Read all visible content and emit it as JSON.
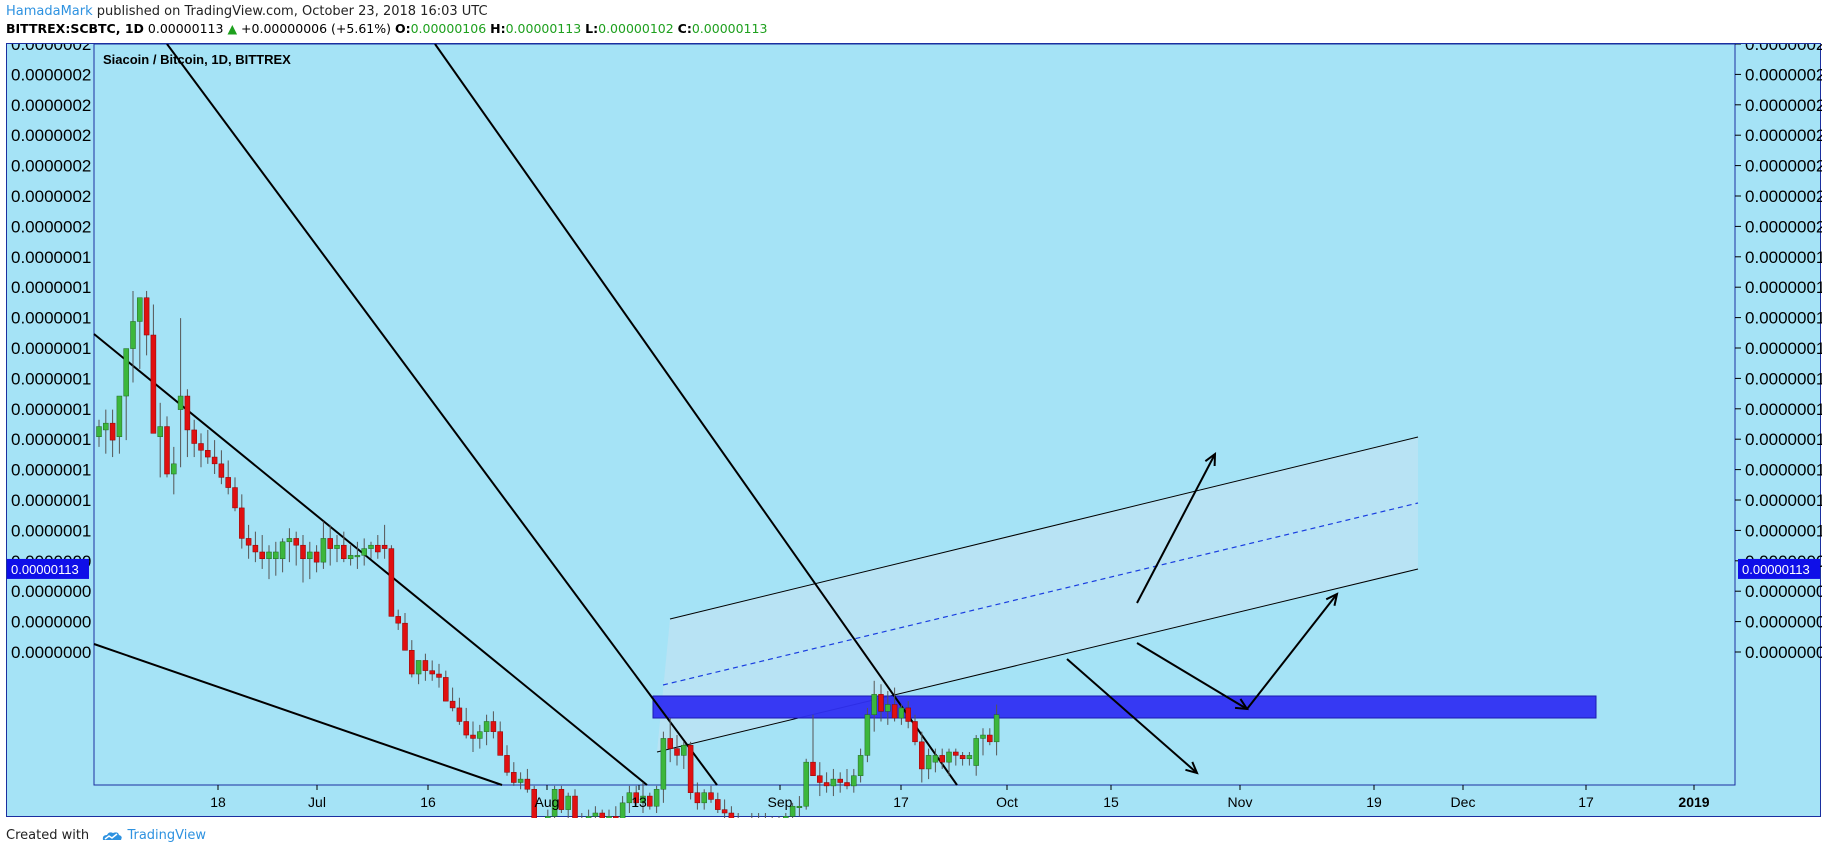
{
  "header": {
    "author": "HamadaMark",
    "published_text": " published on TradingView.com, October 23, 2018 16:03 UTC",
    "symbol_line": "BITTREX:SCBTC, 1D",
    "last": "0.00000113",
    "change": "+0.00000006 (+5.61%)",
    "open_label": "O:",
    "open": "0.00000106",
    "high_label": "H:",
    "high": "0.00000113",
    "low_label": "L:",
    "low": "0.00000102",
    "close_label": "C:",
    "close": "0.00000113",
    "up_arrow": "▲"
  },
  "footer": {
    "created_with": "Created with",
    "brand": "TradingView",
    "logo_icon": "tradingview-cloud-icon"
  },
  "colors": {
    "background": "#a5e3f6",
    "up": "#3cb73c",
    "down": "#e01010",
    "price_tag": "#0f0fe8",
    "support_zone": "#2f2ff2",
    "channel_fill": "#c0e3f4",
    "midline": "#1a3fe0"
  },
  "chart_data": {
    "type": "candlestick",
    "title": "Siacoin / Bitcoin, 1D, BITTREX",
    "x_ticks": [
      "18",
      "Jul",
      "16",
      "Aug",
      "13",
      "Sep",
      "17",
      "Oct",
      "15",
      "Nov",
      "19",
      "Dec",
      "17",
      "2019"
    ],
    "y_ticks": [
      "0.0000002",
      "0.0000002",
      "0.0000002",
      "0.0000002",
      "0.0000002",
      "0.0000002",
      "0.0000002",
      "0.0000001",
      "0.0000001",
      "0.0000001",
      "0.0000001",
      "0.0000001",
      "0.0000001",
      "0.0000001",
      "0.0000001",
      "0.0000001",
      "0.0000001",
      "0.0000000",
      "0.0000000",
      "0.0000000",
      "0.0000000"
    ],
    "current_price_label": "0.00000113",
    "y_scale": {
      "value_a": 2.0,
      "value_b": 1.0,
      "unit": "1e-6 BTC"
    },
    "candles_1e6": [
      [
        1.52,
        1.57,
        1.49,
        1.55
      ],
      [
        1.54,
        1.6,
        1.47,
        1.56
      ],
      [
        1.56,
        1.6,
        1.46,
        1.51
      ],
      [
        1.52,
        1.62,
        1.47,
        1.64
      ],
      [
        1.64,
        1.78,
        1.51,
        1.78
      ],
      [
        1.78,
        1.95,
        1.68,
        1.86
      ],
      [
        1.86,
        1.92,
        1.72,
        1.93
      ],
      [
        1.93,
        1.95,
        1.76,
        1.82
      ],
      [
        1.82,
        1.91,
        1.53,
        1.53
      ],
      [
        1.52,
        1.62,
        1.4,
        1.55
      ],
      [
        1.55,
        1.58,
        1.4,
        1.41
      ],
      [
        1.41,
        1.49,
        1.35,
        1.44
      ],
      [
        1.6,
        1.87,
        1.43,
        1.64
      ],
      [
        1.64,
        1.66,
        1.46,
        1.54
      ],
      [
        1.54,
        1.57,
        1.46,
        1.5
      ],
      [
        1.5,
        1.53,
        1.43,
        1.48
      ],
      [
        1.48,
        1.54,
        1.44,
        1.46
      ],
      [
        1.46,
        1.51,
        1.41,
        1.44
      ],
      [
        1.44,
        1.48,
        1.38,
        1.4
      ],
      [
        1.4,
        1.45,
        1.35,
        1.37
      ],
      [
        1.37,
        1.4,
        1.3,
        1.31
      ],
      [
        1.31,
        1.35,
        1.19,
        1.22
      ],
      [
        1.22,
        1.26,
        1.16,
        1.2
      ],
      [
        1.2,
        1.24,
        1.15,
        1.18
      ],
      [
        1.18,
        1.23,
        1.13,
        1.16
      ],
      [
        1.16,
        1.2,
        1.1,
        1.18
      ],
      [
        1.16,
        1.21,
        1.11,
        1.18
      ],
      [
        1.16,
        1.22,
        1.12,
        1.21
      ],
      [
        1.21,
        1.25,
        1.15,
        1.22
      ],
      [
        1.22,
        1.24,
        1.14,
        1.2
      ],
      [
        1.2,
        1.23,
        1.09,
        1.16
      ],
      [
        1.16,
        1.21,
        1.1,
        1.18
      ],
      [
        1.18,
        1.2,
        1.12,
        1.15
      ],
      [
        1.15,
        1.27,
        1.13,
        1.22
      ],
      [
        1.22,
        1.26,
        1.14,
        1.19
      ],
      [
        1.19,
        1.23,
        1.15,
        1.2
      ],
      [
        1.2,
        1.24,
        1.15,
        1.16
      ],
      [
        1.16,
        1.2,
        1.14,
        1.17
      ],
      [
        1.17,
        1.21,
        1.13,
        1.17
      ],
      [
        1.17,
        1.22,
        1.14,
        1.19
      ],
      [
        1.19,
        1.21,
        1.16,
        1.2
      ],
      [
        1.2,
        1.23,
        1.16,
        1.18
      ],
      [
        1.2,
        1.26,
        1.16,
        1.19
      ],
      [
        1.19,
        1.2,
        0.99,
        0.99
      ],
      [
        0.99,
        1.01,
        0.95,
        0.97
      ],
      [
        0.97,
        1.0,
        0.89,
        0.89
      ],
      [
        0.89,
        0.92,
        0.81,
        0.82
      ],
      [
        0.82,
        0.86,
        0.79,
        0.86
      ],
      [
        0.86,
        0.88,
        0.8,
        0.83
      ],
      [
        0.83,
        0.86,
        0.8,
        0.82
      ],
      [
        0.82,
        0.85,
        0.78,
        0.81
      ],
      [
        0.81,
        0.83,
        0.74,
        0.74
      ],
      [
        0.74,
        0.78,
        0.71,
        0.72
      ],
      [
        0.72,
        0.75,
        0.67,
        0.68
      ],
      [
        0.68,
        0.72,
        0.63,
        0.64
      ],
      [
        0.64,
        0.68,
        0.59,
        0.63
      ],
      [
        0.63,
        0.67,
        0.6,
        0.65
      ],
      [
        0.65,
        0.7,
        0.61,
        0.68
      ],
      [
        0.68,
        0.71,
        0.63,
        0.65
      ],
      [
        0.65,
        0.68,
        0.58,
        0.58
      ],
      [
        0.58,
        0.61,
        0.52,
        0.53
      ],
      [
        0.53,
        0.56,
        0.49,
        0.5
      ],
      [
        0.5,
        0.53,
        0.48,
        0.51
      ],
      [
        0.51,
        0.54,
        0.47,
        0.48
      ],
      [
        0.48,
        0.49,
        0.33,
        0.34
      ],
      [
        0.34,
        0.36,
        0.29,
        0.31
      ],
      [
        0.32,
        0.42,
        0.31,
        0.4
      ],
      [
        0.4,
        0.49,
        0.37,
        0.48
      ],
      [
        0.48,
        0.49,
        0.41,
        0.42
      ],
      [
        0.42,
        0.47,
        0.39,
        0.46
      ],
      [
        0.46,
        0.48,
        0.36,
        0.38
      ],
      [
        0.38,
        0.41,
        0.35,
        0.39
      ],
      [
        0.39,
        0.42,
        0.36,
        0.4
      ],
      [
        0.4,
        0.43,
        0.37,
        0.41
      ],
      [
        0.41,
        0.42,
        0.38,
        0.39
      ],
      [
        0.38,
        0.42,
        0.37,
        0.4
      ],
      [
        0.4,
        0.43,
        0.37,
        0.38
      ],
      [
        0.38,
        0.46,
        0.37,
        0.44
      ],
      [
        0.44,
        0.49,
        0.41,
        0.47
      ],
      [
        0.47,
        0.49,
        0.43,
        0.44
      ],
      [
        0.44,
        0.5,
        0.41,
        0.46
      ],
      [
        0.46,
        0.47,
        0.42,
        0.43
      ],
      [
        0.43,
        0.49,
        0.41,
        0.48
      ],
      [
        0.48,
        0.65,
        0.44,
        0.63
      ],
      [
        0.63,
        0.69,
        0.56,
        0.6
      ],
      [
        0.6,
        0.64,
        0.55,
        0.58
      ],
      [
        0.58,
        0.62,
        0.54,
        0.61
      ],
      [
        0.61,
        0.62,
        0.45,
        0.47
      ],
      [
        0.47,
        0.5,
        0.42,
        0.44
      ],
      [
        0.44,
        0.48,
        0.42,
        0.47
      ],
      [
        0.47,
        0.49,
        0.44,
        0.45
      ],
      [
        0.45,
        0.47,
        0.41,
        0.42
      ],
      [
        0.42,
        0.45,
        0.39,
        0.41
      ],
      [
        0.41,
        0.43,
        0.37,
        0.38
      ],
      [
        0.38,
        0.41,
        0.34,
        0.35
      ],
      [
        0.35,
        0.39,
        0.34,
        0.38
      ],
      [
        0.38,
        0.41,
        0.36,
        0.37
      ],
      [
        0.37,
        0.41,
        0.35,
        0.39
      ],
      [
        0.39,
        0.41,
        0.36,
        0.38
      ],
      [
        0.38,
        0.4,
        0.35,
        0.36
      ],
      [
        0.36,
        0.4,
        0.34,
        0.38
      ],
      [
        0.38,
        0.41,
        0.36,
        0.4
      ],
      [
        0.4,
        0.44,
        0.38,
        0.43
      ],
      [
        0.43,
        0.46,
        0.4,
        0.43
      ],
      [
        0.43,
        0.57,
        0.42,
        0.56
      ],
      [
        0.56,
        0.7,
        0.52,
        0.52
      ],
      [
        0.52,
        0.56,
        0.46,
        0.5
      ],
      [
        0.5,
        0.53,
        0.47,
        0.49
      ],
      [
        0.49,
        0.54,
        0.46,
        0.51
      ],
      [
        0.51,
        0.53,
        0.47,
        0.5
      ],
      [
        0.5,
        0.54,
        0.48,
        0.49
      ],
      [
        0.49,
        0.54,
        0.47,
        0.52
      ],
      [
        0.52,
        0.6,
        0.5,
        0.58
      ],
      [
        0.58,
        0.72,
        0.56,
        0.7
      ],
      [
        0.7,
        0.8,
        0.65,
        0.76
      ],
      [
        0.76,
        0.79,
        0.68,
        0.71
      ],
      [
        0.71,
        0.77,
        0.67,
        0.73
      ],
      [
        0.73,
        0.78,
        0.68,
        0.69
      ],
      [
        0.69,
        0.73,
        0.67,
        0.72
      ],
      [
        0.72,
        0.74,
        0.66,
        0.68
      ],
      [
        0.68,
        0.7,
        0.61,
        0.62
      ],
      [
        0.62,
        0.65,
        0.5,
        0.54
      ],
      [
        0.54,
        0.6,
        0.51,
        0.58
      ],
      [
        0.56,
        0.6,
        0.53,
        0.58
      ],
      [
        0.58,
        0.6,
        0.54,
        0.56
      ],
      [
        0.56,
        0.6,
        0.52,
        0.59
      ],
      [
        0.59,
        0.6,
        0.55,
        0.58
      ],
      [
        0.58,
        0.59,
        0.55,
        0.57
      ],
      [
        0.57,
        0.59,
        0.55,
        0.58
      ],
      [
        0.55,
        0.64,
        0.52,
        0.63
      ],
      [
        0.63,
        0.66,
        0.58,
        0.64
      ],
      [
        0.64,
        0.66,
        0.61,
        0.62
      ],
      [
        0.62,
        0.73,
        0.58,
        0.7
      ]
    ]
  }
}
